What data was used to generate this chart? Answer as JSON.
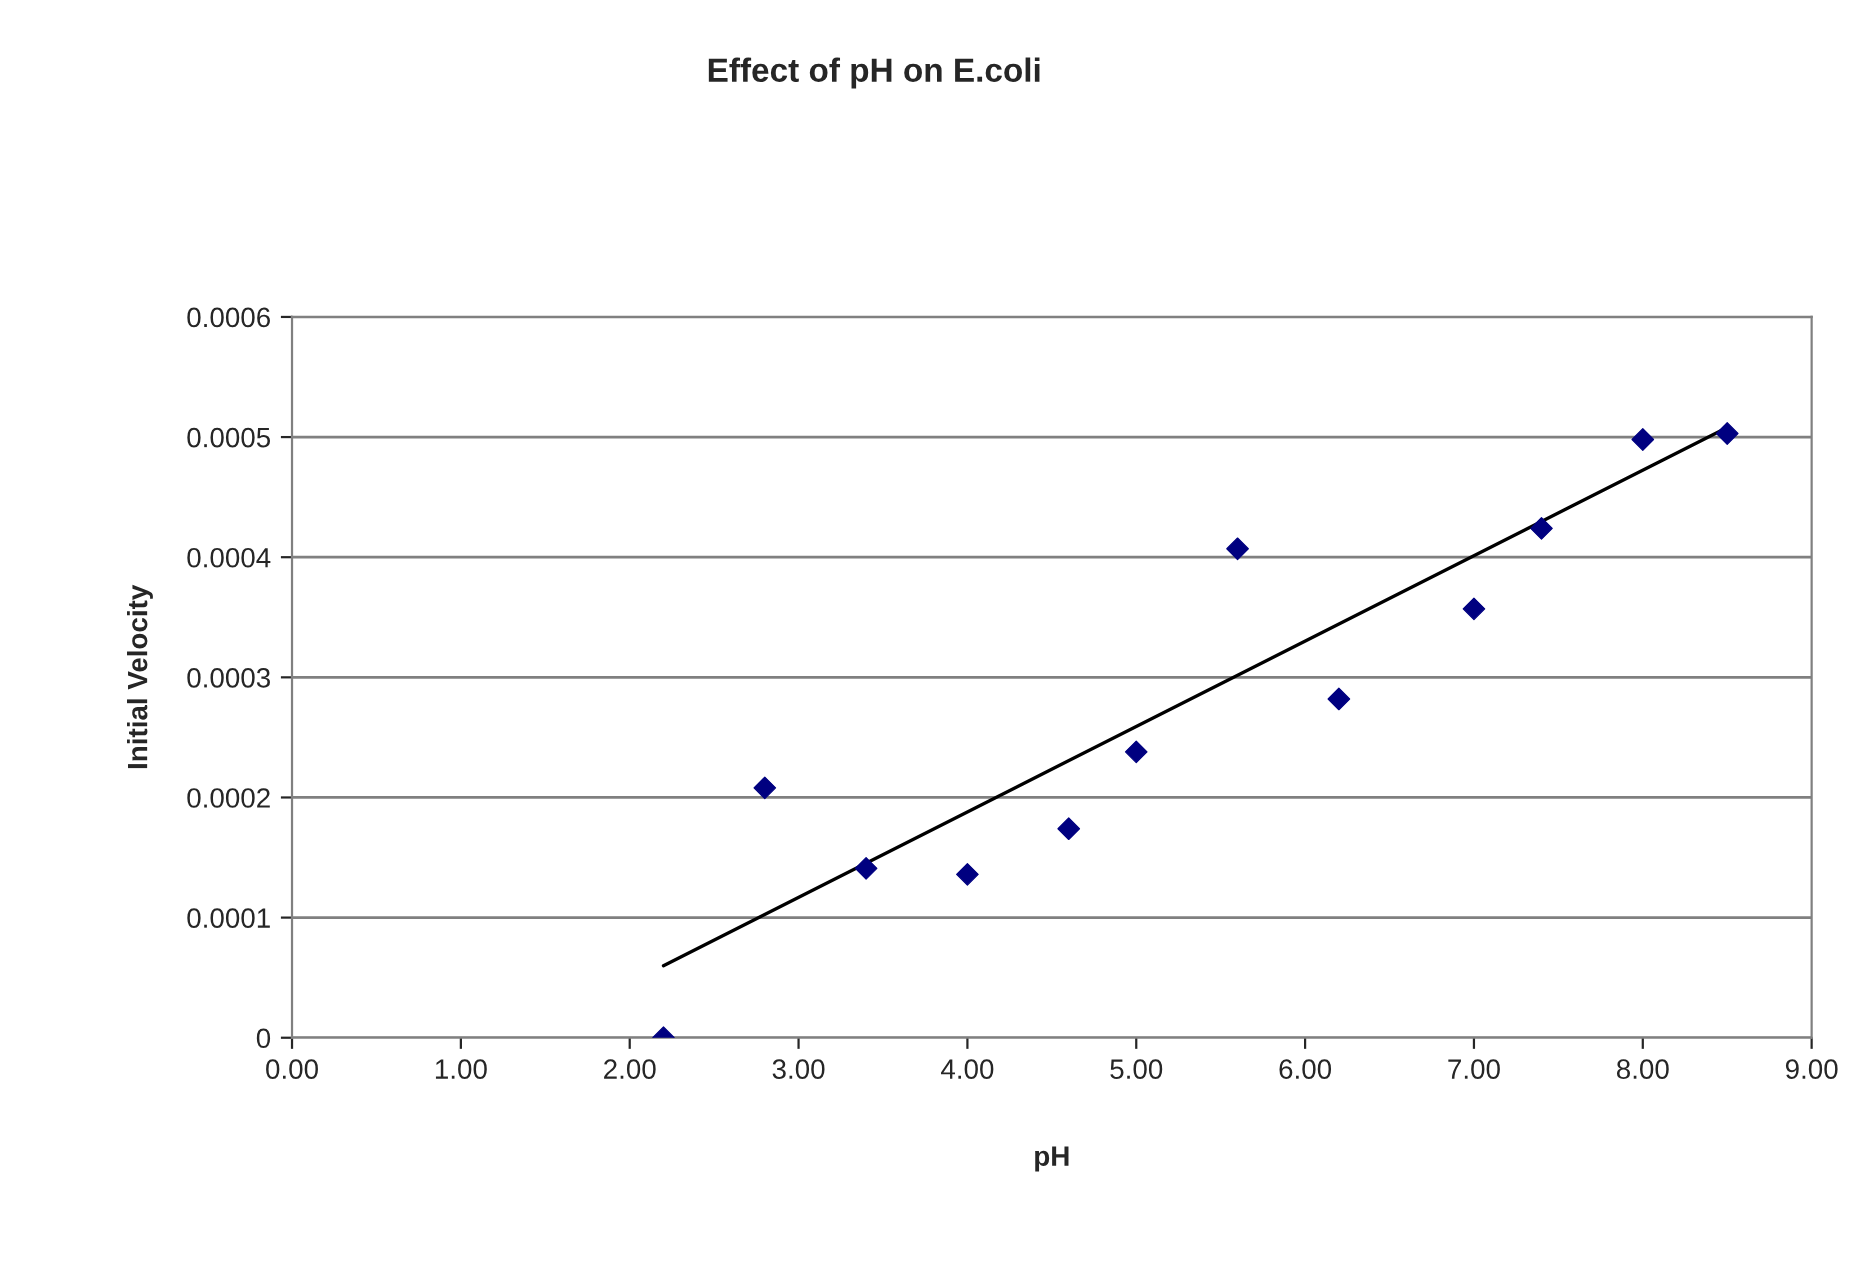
{
  "chart_data": {
    "type": "scatter",
    "title": "Effect of pH on E.coli",
    "xlabel": "pH",
    "ylabel": "Initial Velocity",
    "xlim": [
      0,
      9
    ],
    "xticks": [
      {
        "value": 0,
        "label": "0.00"
      },
      {
        "value": 1,
        "label": "1.00"
      },
      {
        "value": 2,
        "label": "2.00"
      },
      {
        "value": 3,
        "label": "3.00"
      },
      {
        "value": 4,
        "label": "4.00"
      },
      {
        "value": 5,
        "label": "5.00"
      },
      {
        "value": 6,
        "label": "6.00"
      },
      {
        "value": 7,
        "label": "7.00"
      },
      {
        "value": 8,
        "label": "8.00"
      },
      {
        "value": 9,
        "label": "9.00"
      }
    ],
    "ylim": [
      0,
      0.0006
    ],
    "yticks": [
      0,
      0.0001,
      0.0002,
      0.0003,
      0.0004,
      0.0005,
      0.0006
    ],
    "grid": "y",
    "legend": false,
    "series": [
      {
        "color": "#000080",
        "marker": "diamond",
        "x": [
          2.2,
          2.8,
          3.4,
          4.0,
          4.6,
          5.0,
          5.6,
          6.2,
          7.0,
          7.4,
          8.0,
          8.5
        ],
        "values": [
          0,
          0.000208,
          0.000141,
          0.000136,
          0.000174,
          0.000238,
          0.000407,
          0.000282,
          0.000357,
          0.000424,
          0.000498,
          0.000503
        ]
      },
      {
        "type": "line",
        "color": "#000000",
        "marker": "none",
        "line_style": "solid",
        "x": [
          2.2,
          8.5
        ],
        "values": [
          6e-05,
          0.000508
        ]
      }
    ]
  }
}
